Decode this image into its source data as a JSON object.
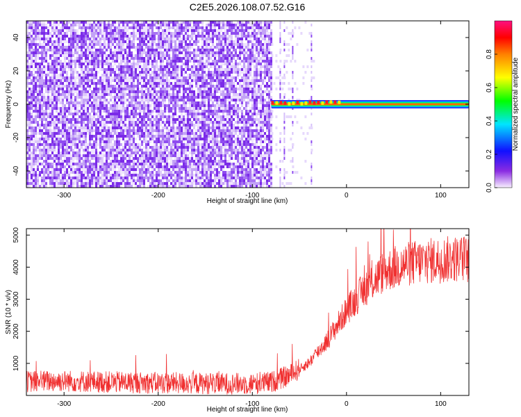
{
  "title": "C2E5.2026.108.07.52.G16",
  "colors": {
    "noise": "#7b2be8",
    "snr_line": "#f03030",
    "axis": "#000000"
  },
  "colorbar": {
    "label": "Normalized spectral amplitude",
    "ticks": [
      "0.0",
      "0.2",
      "0.4",
      "0.6",
      "0.8"
    ],
    "range": [
      0,
      1
    ],
    "colormap": "rainbow (violet-blue-cyan-green-yellow-orange-red-magenta)"
  },
  "chart_data": [
    {
      "type": "heatmap",
      "xlabel": "Height of straight line (km)",
      "ylabel": "Frequency (Hz)",
      "xlim": [
        -340,
        130
      ],
      "ylim": [
        -50,
        50
      ],
      "xticks": [
        -300,
        -200,
        -100,
        0,
        100
      ],
      "xticklabels": [
        "-300",
        "-200",
        "-100",
        "0",
        "100"
      ],
      "yticks": [
        -40,
        -20,
        0,
        20,
        40
      ],
      "yticklabels": [
        "-40",
        "-20",
        "0",
        "20",
        "40"
      ],
      "regions": [
        {
          "description": "broadband noise",
          "x_range": [
            -340,
            -80
          ],
          "level": 0.1
        },
        {
          "description": "sparse noise columns",
          "x_range": [
            -80,
            -35
          ],
          "level": 0.08
        },
        {
          "description": "signal band near 0 Hz",
          "x_range": [
            -80,
            130
          ],
          "frequency": 0,
          "level": 0.6
        }
      ]
    },
    {
      "type": "line",
      "xlabel": "Height of straight line (km)",
      "ylabel": "SNR (10 * v/v)",
      "xlim": [
        -340,
        130
      ],
      "ylim": [
        0,
        5200
      ],
      "xticks": [
        -300,
        -200,
        -100,
        0,
        100
      ],
      "xticklabels": [
        "-300",
        "-200",
        "-100",
        "0",
        "100"
      ],
      "yticks": [
        1000,
        2000,
        3000,
        4000,
        5000
      ],
      "yticklabels": [
        "1000",
        "2000",
        "3000",
        "4000",
        "5000"
      ],
      "series": [
        {
          "x": [
            -340,
            -300,
            -250,
            -200,
            -150,
            -100,
            -80,
            -60,
            -40,
            -20,
            0,
            20,
            40,
            60,
            80,
            100,
            120,
            130
          ],
          "y": [
            400,
            420,
            380,
            360,
            340,
            330,
            380,
            600,
            1000,
            1700,
            2600,
            3300,
            3800,
            4000,
            4100,
            4150,
            4200,
            4150
          ]
        }
      ]
    }
  ]
}
